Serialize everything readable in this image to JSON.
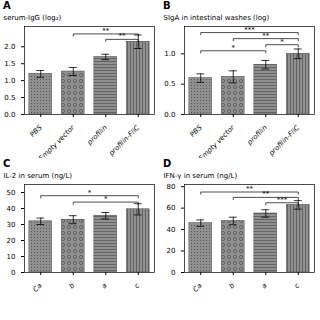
{
  "chart_data": [
    {
      "type": "bar",
      "title": "A",
      "ylabel": "serum-IgG (log₂)",
      "categories": [
        "PBS",
        "Empty vector",
        "profilin",
        "profilin-FliC"
      ],
      "values": [
        1.2,
        1.27,
        1.7,
        2.15
      ],
      "errors": [
        0.1,
        0.12,
        0.08,
        0.2
      ],
      "color": "#909090",
      "ylim": [
        0.0,
        2.6
      ],
      "yticks": [
        {
          "value": 0.0,
          "label": "0.0"
        },
        {
          "value": 0.5,
          "label": "0.5"
        },
        {
          "value": 1.0,
          "label": "1.0"
        },
        {
          "value": 1.5,
          "label": "1.5"
        },
        {
          "value": 2.0,
          "label": "2.0"
        }
      ],
      "annotations": [
        {
          "x1": "Empty vector",
          "x2": "profilin-FliC",
          "y": 2.38,
          "text": "**"
        },
        {
          "x1": "profilin",
          "x2": "profilin-FliC",
          "y": 2.22,
          "text": "**"
        }
      ]
    },
    {
      "type": "bar",
      "title": "B",
      "ylabel": "SIgA in intestinal washes (log)",
      "categories": [
        "PBS",
        "Empty vector",
        "profilin",
        "profilin-FliC"
      ],
      "values": [
        0.6,
        0.62,
        0.82,
        1.0
      ],
      "errors": [
        0.07,
        0.1,
        0.07,
        0.08
      ],
      "color": "#909090",
      "ylim": [
        0.0,
        1.45
      ],
      "yticks": [
        {
          "value": 0.0,
          "label": "0.0"
        },
        {
          "value": 0.5,
          "label": "0.5"
        },
        {
          "value": 1.0,
          "label": "1.0"
        }
      ],
      "annotations": [
        {
          "x1": "PBS",
          "x2": "profilin-FliC",
          "y": 1.35,
          "text": "***"
        },
        {
          "x1": "Empty vector",
          "x2": "profilin-FliC",
          "y": 1.25,
          "text": "**"
        },
        {
          "x1": "profilin",
          "x2": "profilin-FliC",
          "y": 1.15,
          "text": "*"
        },
        {
          "x1": "PBS",
          "x2": "profilin",
          "y": 1.05,
          "text": "*"
        }
      ]
    },
    {
      "type": "bar",
      "title": "C",
      "ylabel": "IL-2 in serum (ng/L)",
      "categories": [
        "Ca",
        "b",
        "a",
        "c"
      ],
      "values": [
        32,
        33,
        35.5,
        39.5
      ],
      "errors": [
        2.0,
        2.5,
        2.0,
        3.5
      ],
      "color": "#909090",
      "ylim": [
        0,
        55
      ],
      "yticks": [
        0,
        10,
        20,
        30,
        40,
        50
      ],
      "annotations": [
        {
          "x1": "Ca",
          "x2": "c",
          "y": 48,
          "text": "*"
        },
        {
          "x1": "b",
          "x2": "c",
          "y": 44,
          "text": "*"
        }
      ]
    },
    {
      "type": "bar",
      "title": "D",
      "ylabel": "IFN-γ in serum (ng/L)",
      "categories": [
        "Ca",
        "b",
        "a",
        "c"
      ],
      "values": [
        46,
        48,
        55,
        63
      ],
      "errors": [
        3.0,
        3.5,
        3.5,
        4.0
      ],
      "color": "#909090",
      "ylim": [
        0,
        82
      ],
      "yticks": [
        0,
        20,
        40,
        60,
        80
      ],
      "annotations": [
        {
          "x1": "Ca",
          "x2": "c",
          "y": 75,
          "text": "**"
        },
        {
          "x1": "b",
          "x2": "c",
          "y": 70,
          "text": "**"
        },
        {
          "x1": "a",
          "x2": "c",
          "y": 65,
          "text": "***"
        }
      ]
    }
  ]
}
